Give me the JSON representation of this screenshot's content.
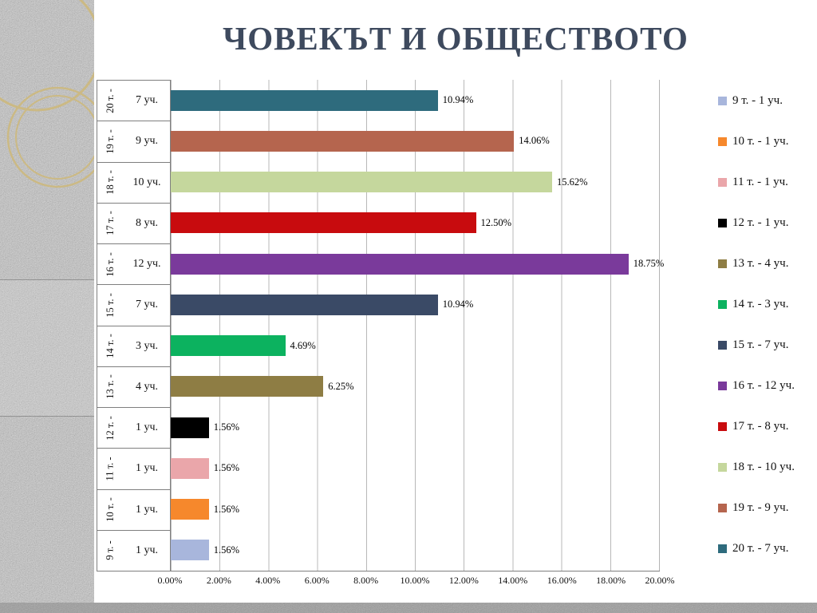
{
  "title": "ЧОВЕКЪТ И ОБЩЕСТВОТО",
  "chart_data": {
    "type": "bar",
    "orientation": "horizontal",
    "xlim": [
      0,
      20
    ],
    "grid": true,
    "legend_position": "right",
    "x_ticks": [
      "0.00%",
      "2.00%",
      "4.00%",
      "6.00%",
      "8.00%",
      "10.00%",
      "12.00%",
      "14.00%",
      "16.00%",
      "18.00%",
      "20.00%"
    ],
    "rows": [
      {
        "points": "20 т. -",
        "students": "7 уч.",
        "value": 10.94,
        "label": "10.94%",
        "color": "#2e6b7d"
      },
      {
        "points": "19 т. -",
        "students": "9 уч.",
        "value": 14.06,
        "label": "14.06%",
        "color": "#b5654e"
      },
      {
        "points": "18 т. -",
        "students": "10 уч.",
        "value": 15.62,
        "label": "15.62%",
        "color": "#c5d79d"
      },
      {
        "points": "17 т. -",
        "students": "8 уч.",
        "value": 12.5,
        "label": "12.50%",
        "color": "#c80b0e"
      },
      {
        "points": "16 т. -",
        "students": "12 уч.",
        "value": 18.75,
        "label": "18.75%",
        "color": "#7a3a9b"
      },
      {
        "points": "15 т. -",
        "students": "7 уч.",
        "value": 10.94,
        "label": "10.94%",
        "color": "#3a4a66"
      },
      {
        "points": "14 т. -",
        "students": "3 уч.",
        "value": 4.69,
        "label": "4.69%",
        "color": "#0cb25f"
      },
      {
        "points": "13 т. -",
        "students": "4 уч.",
        "value": 6.25,
        "label": "6.25%",
        "color": "#8e7d44"
      },
      {
        "points": "12 т. -",
        "students": "1 уч.",
        "value": 1.56,
        "label": "1.56%",
        "color": "#000000"
      },
      {
        "points": "11 т. -",
        "students": "1 уч.",
        "value": 1.56,
        "label": "1.56%",
        "color": "#eaa6aa"
      },
      {
        "points": "10 т. -",
        "students": "1 уч.",
        "value": 1.56,
        "label": "1.56%",
        "color": "#f6882c"
      },
      {
        "points": "9 т. -",
        "students": "1 уч.",
        "value": 1.56,
        "label": "1.56%",
        "color": "#a8b6dc"
      }
    ],
    "legend": [
      {
        "label": "9 т. - 1 уч.",
        "color": "#a8b6dc"
      },
      {
        "label": "10 т. - 1 уч.",
        "color": "#f6882c"
      },
      {
        "label": "11 т. - 1 уч.",
        "color": "#eaa6aa"
      },
      {
        "label": "12 т. - 1 уч.",
        "color": "#000000"
      },
      {
        "label": "13 т. - 4 уч.",
        "color": "#8e7d44"
      },
      {
        "label": "14 т. - 3 уч.",
        "color": "#0cb25f"
      },
      {
        "label": "15 т. - 7 уч.",
        "color": "#3a4a66"
      },
      {
        "label": "16 т. - 12 уч.",
        "color": "#7a3a9b"
      },
      {
        "label": "17 т. - 8 уч.",
        "color": "#c80b0e"
      },
      {
        "label": "18 т. - 10 уч.",
        "color": "#c5d79d"
      },
      {
        "label": "19 т. - 9 уч.",
        "color": "#b5654e"
      },
      {
        "label": "20 т. - 7 уч.",
        "color": "#2e6b7d"
      }
    ]
  }
}
